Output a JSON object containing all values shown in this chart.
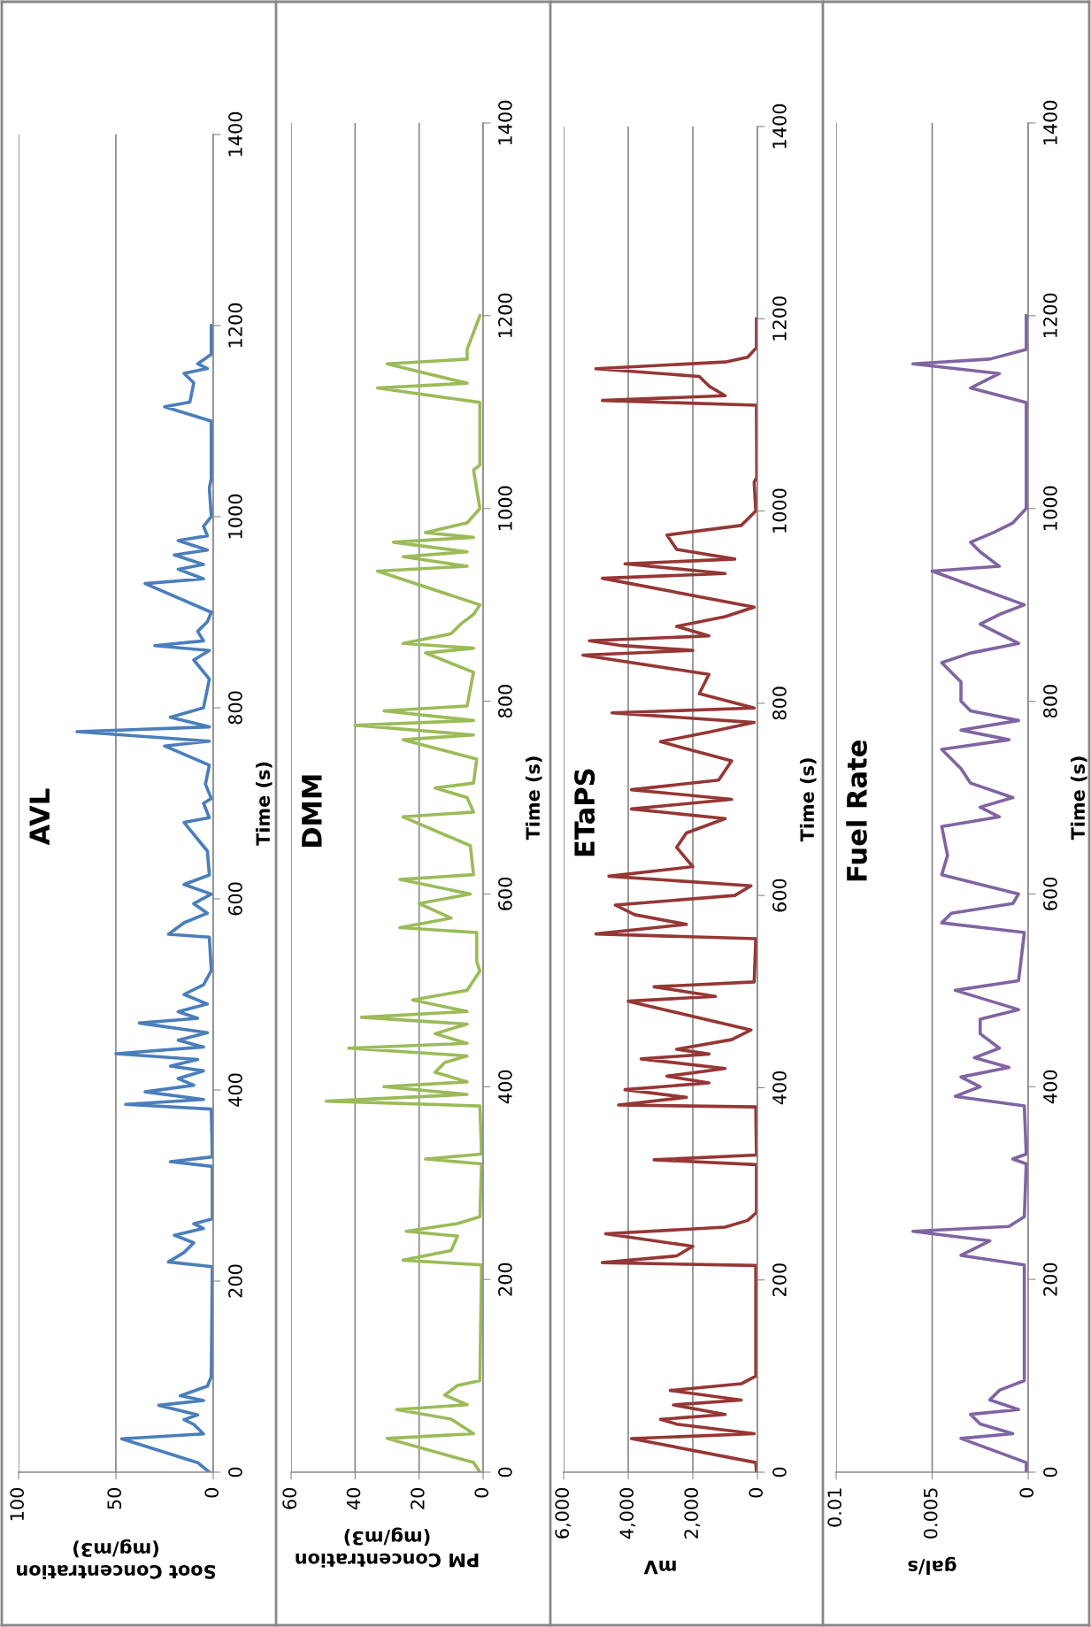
{
  "chart_data": [
    {
      "type": "line",
      "title": "AVL",
      "xlabel": "Soot Concentration\n(mg/m3)",
      "ylabel": "Time (s)",
      "xlim": [
        100,
        0
      ],
      "xticks": [
        0,
        50,
        100
      ],
      "ylim": [
        0,
        1400
      ],
      "yticks": [
        0,
        200,
        400,
        600,
        800,
        1000,
        1200,
        1400
      ],
      "grid": "x",
      "series": [
        {
          "color": "#4a7ebb",
          "x": [
            2,
            8,
            47,
            5,
            10,
            15,
            8,
            28,
            5,
            17,
            10,
            3,
            1,
            0.5,
            23,
            15,
            10,
            20,
            5,
            10,
            0.5,
            0.5,
            22,
            0.5,
            1,
            45,
            5,
            35,
            10,
            18,
            5,
            22,
            8,
            50,
            5,
            18,
            3,
            38,
            8,
            18,
            3,
            15,
            5,
            1,
            2,
            23,
            15,
            3,
            10,
            1,
            15,
            2,
            3,
            15,
            2,
            5,
            1,
            4,
            2,
            25,
            2,
            70,
            2,
            22,
            5,
            2,
            10,
            2,
            30,
            5,
            8,
            3,
            1,
            35,
            5,
            18,
            5,
            20,
            3,
            18,
            3,
            5,
            1,
            2,
            1,
            1,
            25,
            12,
            10,
            15,
            3,
            8,
            1,
            1
          ],
          "values": [
            0,
            10,
            35,
            40,
            50,
            55,
            60,
            70,
            75,
            80,
            85,
            90,
            100,
            215,
            220,
            230,
            240,
            248,
            255,
            260,
            265,
            320,
            325,
            330,
            380,
            385,
            390,
            398,
            405,
            412,
            420,
            425,
            432,
            438,
            445,
            452,
            460,
            470,
            475,
            482,
            490,
            500,
            510,
            525,
            560,
            563,
            575,
            585,
            595,
            605,
            615,
            625,
            650,
            680,
            685,
            700,
            705,
            720,
            740,
            760,
            765,
            775,
            780,
            790,
            800,
            830,
            850,
            860,
            865,
            870,
            880,
            890,
            900,
            930,
            935,
            945,
            950,
            960,
            965,
            975,
            980,
            990,
            1000,
            1030,
            1040,
            1100,
            1115,
            1120,
            1140,
            1150,
            1155,
            1160,
            1170,
            1200
          ]
        }
      ]
    },
    {
      "type": "line",
      "title": "DMM",
      "xlabel": "PM Concentration\n(mg/m3)",
      "ylabel": "Time (s)",
      "xlim": [
        60,
        0
      ],
      "xticks": [
        0,
        20,
        40,
        60
      ],
      "ylim": [
        0,
        1400
      ],
      "yticks": [
        0,
        200,
        400,
        600,
        800,
        1000,
        1200,
        1400
      ],
      "grid": "x",
      "series": [
        {
          "color": "#9bbb59",
          "x": [
            1,
            3,
            30,
            3,
            10,
            27,
            5,
            12,
            8,
            1,
            0.5,
            25,
            10,
            8,
            24,
            8,
            1,
            0.5,
            18,
            0.5,
            1,
            49,
            5,
            31,
            5,
            15,
            12,
            5,
            42,
            5,
            15,
            5,
            38,
            5,
            22,
            5,
            1,
            2,
            2,
            26,
            10,
            20,
            4,
            26,
            3,
            4,
            25,
            3,
            5,
            15,
            3,
            2,
            25,
            3,
            40,
            3,
            31,
            5,
            3,
            18,
            3,
            25,
            10,
            7,
            3,
            1,
            33,
            5,
            25,
            5,
            28,
            3,
            18,
            5,
            1,
            3,
            1,
            1,
            33,
            5,
            30,
            5,
            5,
            1
          ],
          "values": [
            0,
            10,
            35,
            40,
            55,
            65,
            70,
            80,
            90,
            95,
            215,
            220,
            230,
            245,
            250,
            258,
            265,
            320,
            325,
            330,
            380,
            385,
            392,
            400,
            405,
            415,
            425,
            432,
            440,
            445,
            455,
            465,
            472,
            478,
            490,
            500,
            520,
            530,
            560,
            565,
            575,
            590,
            600,
            615,
            620,
            650,
            680,
            685,
            700,
            710,
            715,
            740,
            760,
            765,
            775,
            780,
            790,
            795,
            830,
            850,
            855,
            860,
            870,
            880,
            890,
            900,
            935,
            940,
            950,
            955,
            965,
            970,
            975,
            985,
            1000,
            1040,
            1045,
            1110,
            1125,
            1130,
            1150,
            1155,
            1165,
            1200
          ]
        }
      ]
    },
    {
      "type": "line",
      "title": "ETaPS",
      "xlabel": "mV",
      "ylabel": "Time (s)",
      "xlim": [
        6000,
        0
      ],
      "xticks": [
        {
          "value": 0,
          "label": "0"
        },
        {
          "value": 2000,
          "label": "2,000"
        },
        {
          "value": 4000,
          "label": "4,000"
        },
        {
          "value": 6000,
          "label": "6,000"
        }
      ],
      "ylim": [
        0,
        1400
      ],
      "yticks": [
        0,
        200,
        400,
        600,
        800,
        1000,
        1200,
        1400
      ],
      "grid": "x",
      "series": [
        {
          "color": "#953735",
          "x": [
            30,
            50,
            3900,
            100,
            2500,
            3000,
            1000,
            2600,
            500,
            2700,
            500,
            50,
            50,
            4800,
            2500,
            2000,
            4700,
            1000,
            300,
            30,
            30,
            3200,
            30,
            50,
            4300,
            2200,
            4100,
            1500,
            2800,
            1000,
            3600,
            1500,
            2500,
            800,
            200,
            4000,
            1300,
            3200,
            100,
            50,
            5000,
            2200,
            3800,
            4400,
            700,
            200,
            4600,
            2000,
            2500,
            2200,
            1000,
            3900,
            800,
            3900,
            1200,
            800,
            3000,
            1500,
            100,
            4500,
            100,
            1800,
            1500,
            5400,
            2000,
            4200,
            5200,
            1500,
            2500,
            1000,
            100,
            4800,
            1000,
            4100,
            700,
            2500,
            2800,
            500,
            50,
            100,
            20,
            30,
            4800,
            1000,
            1500,
            1800,
            5000,
            1000,
            300,
            30,
            30
          ],
          "values": [
            0,
            10,
            35,
            40,
            50,
            55,
            60,
            70,
            75,
            85,
            92,
            100,
            215,
            218,
            225,
            235,
            248,
            255,
            262,
            270,
            320,
            325,
            330,
            380,
            382,
            390,
            398,
            405,
            412,
            420,
            430,
            435,
            440,
            450,
            460,
            490,
            495,
            505,
            510,
            555,
            560,
            570,
            580,
            590,
            600,
            610,
            620,
            630,
            650,
            665,
            680,
            690,
            700,
            710,
            720,
            740,
            760,
            770,
            780,
            790,
            795,
            810,
            830,
            850,
            855,
            860,
            865,
            870,
            880,
            890,
            900,
            930,
            935,
            945,
            950,
            960,
            975,
            985,
            1000,
            1030,
            1035,
            1110,
            1115,
            1120,
            1130,
            1140,
            1148,
            1155,
            1160,
            1170,
            1200
          ]
        }
      ]
    },
    {
      "type": "line",
      "title": "Fuel Rate",
      "xlabel": "gal/s",
      "ylabel": "Time (s)",
      "xlim": [
        0.01,
        0
      ],
      "xticks": [
        0,
        0.005,
        0.01
      ],
      "ylim": [
        0,
        1400
      ],
      "yticks": [
        0,
        200,
        400,
        600,
        800,
        1000,
        1200,
        1400
      ],
      "grid": "x",
      "series": [
        {
          "color": "#8064a2",
          "x": [
            0.0001,
            0.0001,
            0.0035,
            0.0008,
            0.0025,
            0.003,
            0.0005,
            0.002,
            0.0015,
            0.0002,
            0.0002,
            0.0035,
            0.002,
            0.006,
            0.001,
            0.0002,
            0.0001,
            0.0008,
            0.0001,
            0.0002,
            0.0038,
            0.0025,
            0.0035,
            0.001,
            0.0028,
            0.0015,
            0.0025,
            0.0025,
            0.0005,
            0.0038,
            0.0005,
            0.0002,
            0.0045,
            0.004,
            0.0008,
            0.0005,
            0.0045,
            0.0042,
            0.0045,
            0.0015,
            0.0025,
            0.0008,
            0.003,
            0.0035,
            0.0045,
            0.001,
            0.0035,
            0.0005,
            0.003,
            0.0035,
            0.0035,
            0.0045,
            0.003,
            0.0005,
            0.0015,
            0.0025,
            0.0015,
            0.0002,
            0.005,
            0.0015,
            0.0025,
            0.003,
            0.0018,
            0.0008,
            0.0001,
            0.0001,
            0.003,
            0.0015,
            0.006,
            0.002,
            0.0001,
            0.0001
          ],
          "values": [
            0,
            10,
            35,
            40,
            50,
            60,
            65,
            75,
            85,
            95,
            215,
            225,
            240,
            250,
            255,
            265,
            320,
            325,
            330,
            380,
            390,
            400,
            410,
            420,
            430,
            440,
            455,
            470,
            480,
            500,
            510,
            560,
            570,
            580,
            590,
            600,
            620,
            640,
            670,
            680,
            690,
            700,
            715,
            730,
            750,
            760,
            770,
            780,
            790,
            800,
            820,
            840,
            850,
            860,
            870,
            880,
            890,
            900,
            935,
            940,
            955,
            965,
            975,
            985,
            1000,
            1110,
            1125,
            1140,
            1150,
            1155,
            1165,
            1200
          ]
        }
      ]
    }
  ]
}
